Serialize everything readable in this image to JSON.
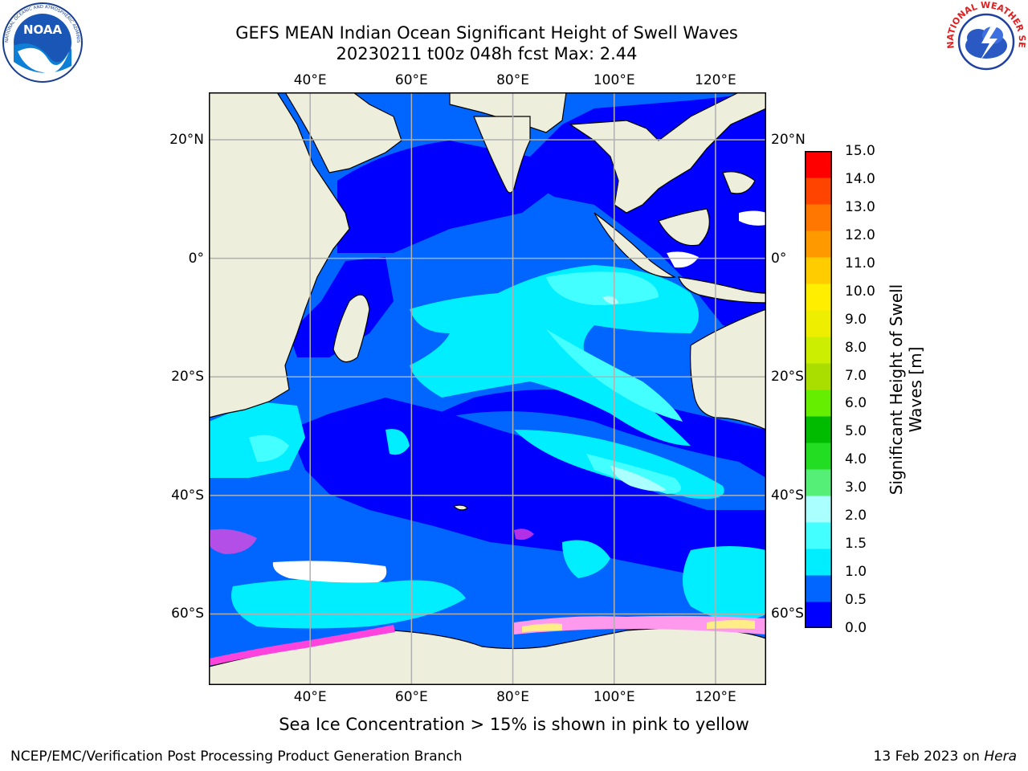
{
  "title_line1": "GEFS MEAN Indian Ocean Significant Height of Swell Waves",
  "title_line2": "20230211 t00z 048h fcst   Max: 2.44",
  "logos": {
    "noaa": {
      "text": "NOAA",
      "ring_text": "NATIONAL OCEANIC AND ATMOSPHERIC ADMINISTRATION · U.S. DEPARTMENT OF COMMERCE"
    },
    "nws": {
      "ring_text": "NATIONAL WEATHER SERVICE"
    }
  },
  "map": {
    "lon_ticks": [
      {
        "lon": 40,
        "label": "40°E"
      },
      {
        "lon": 60,
        "label": "60°E"
      },
      {
        "lon": 80,
        "label": "80°E"
      },
      {
        "lon": 100,
        "label": "100°E"
      },
      {
        "lon": 120,
        "label": "120°E"
      }
    ],
    "lat_ticks": [
      {
        "lat": 20,
        "label": "20°N"
      },
      {
        "lat": 0,
        "label": "0°"
      },
      {
        "lat": -20,
        "label": "20°S"
      },
      {
        "lat": -40,
        "label": "40°S"
      },
      {
        "lat": -60,
        "label": "60°S"
      }
    ],
    "lon_range": [
      20,
      130
    ],
    "lat_range": [
      -72,
      28
    ],
    "colors": {
      "land": "#eeeedd",
      "coast": "#000000",
      "grid": "#b0b0b0",
      "sea_ice": [
        "#ff44dd",
        "#ff99ee",
        "#ffee88"
      ],
      "no_data": "#ffffff"
    }
  },
  "colorbar": {
    "title_line1": "Significant Height of Swell",
    "title_line2": "Waves [m]",
    "labels": [
      "0.0",
      "0.5",
      "1.0",
      "1.5",
      "2.0",
      "3.0",
      "4.0",
      "5.0",
      "6.0",
      "7.0",
      "8.0",
      "9.0",
      "10.0",
      "11.0",
      "12.0",
      "13.0",
      "14.0",
      "15.0"
    ],
    "colors": [
      "#0000ff",
      "#0066ff",
      "#00eeff",
      "#44ffff",
      "#aaffff",
      "#55ee77",
      "#22dd22",
      "#00bb00",
      "#66ee00",
      "#aadd00",
      "#ccee00",
      "#eeee00",
      "#ffee00",
      "#ffcc00",
      "#ff9900",
      "#ff7700",
      "#ff4400",
      "#ff0000"
    ]
  },
  "subtitle": "Sea Ice Concentration > 15% is shown in pink to yellow",
  "footer_left": "NCEP/EMC/Verification Post Processing Product Generation Branch",
  "footer_right_prefix": "13 Feb 2023 on ",
  "footer_right_host": "Hera"
}
